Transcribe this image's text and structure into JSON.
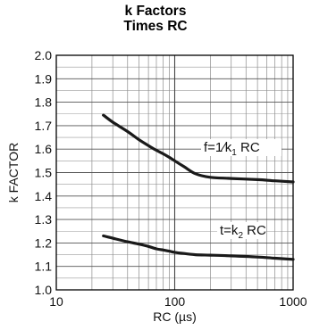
{
  "chart_data": {
    "type": "line",
    "title": "k Factors",
    "subtitle": "Times RC",
    "xlabel": "RC (µs)",
    "ylabel": "k FACTOR",
    "xscale": "log",
    "xlim": [
      10,
      1000
    ],
    "ylim": [
      1.0,
      2.0
    ],
    "grid": true,
    "x_tick_labels": [
      "10",
      "100",
      "1000"
    ],
    "y_tick_labels": [
      "1.0",
      "1.1",
      "1.2",
      "1.3",
      "1.4",
      "1.5",
      "1.6",
      "1.7",
      "1.8",
      "1.9",
      "2.0"
    ],
    "series": [
      {
        "label_main": "f=1⁄k",
        "label_sub": "1",
        "label_tail": " RC",
        "x": [
          25,
          30,
          40,
          50,
          60,
          70,
          80,
          90,
          100,
          120,
          150,
          200,
          300,
          500,
          700,
          1000
        ],
        "y": [
          1.745,
          1.715,
          1.675,
          1.64,
          1.615,
          1.595,
          1.58,
          1.565,
          1.55,
          1.525,
          1.495,
          1.48,
          1.475,
          1.47,
          1.465,
          1.46
        ]
      },
      {
        "label_main": "t=k",
        "label_sub": "2",
        "label_tail": " RC",
        "x": [
          25,
          30,
          40,
          50,
          60,
          70,
          80,
          90,
          100,
          120,
          150,
          200,
          300,
          500,
          700,
          1000
        ],
        "y": [
          1.23,
          1.22,
          1.205,
          1.195,
          1.185,
          1.175,
          1.17,
          1.165,
          1.16,
          1.155,
          1.15,
          1.148,
          1.145,
          1.14,
          1.135,
          1.13
        ]
      }
    ]
  }
}
